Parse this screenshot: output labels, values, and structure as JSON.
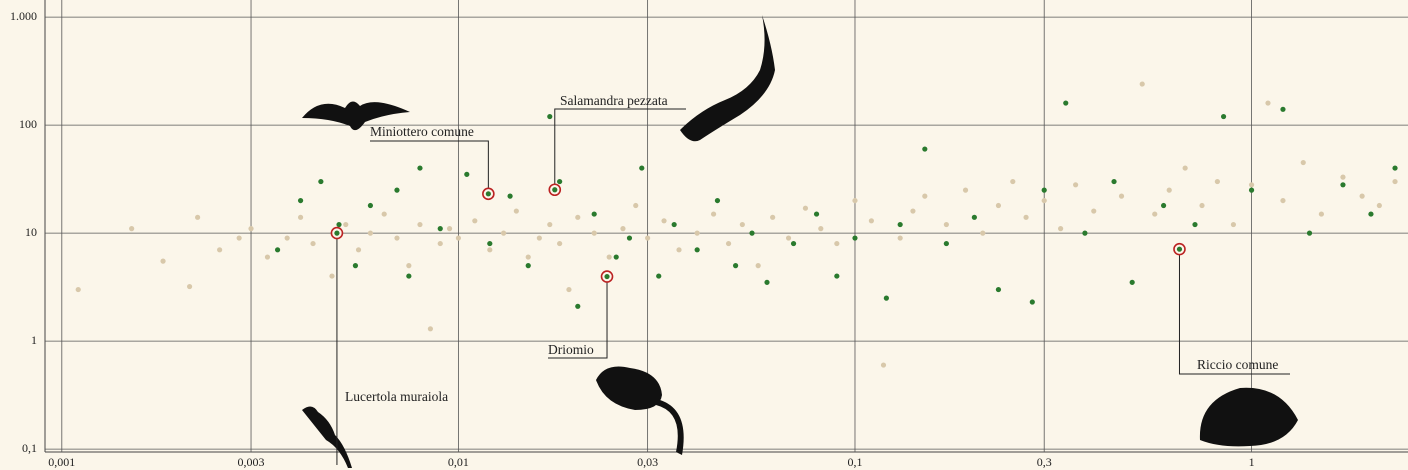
{
  "chart_data": {
    "type": "scatter",
    "xlog": true,
    "ylog": true,
    "grid": true,
    "xlim": [
      0.000907,
      2.48
    ],
    "ylim": [
      0.094,
      1440
    ],
    "xticks": [
      {
        "value": 0.001,
        "label": "0,001"
      },
      {
        "value": 0.003,
        "label": "0,003"
      },
      {
        "value": 0.01,
        "label": "0,01"
      },
      {
        "value": 0.03,
        "label": "0,03"
      },
      {
        "value": 0.1,
        "label": "0,1"
      },
      {
        "value": 0.3,
        "label": "0,3"
      },
      1
    ],
    "yticks": [
      {
        "value": 0.1,
        "label": "0,1"
      },
      1,
      10,
      100,
      {
        "value": 1000,
        "label": "1.000"
      }
    ],
    "series": [
      {
        "color": "#d8c8aa",
        "x": [
          0.0011,
          0.0015,
          0.0018,
          0.0021,
          0.0022,
          0.0025,
          0.0028,
          0.003,
          0.0033,
          0.0037,
          0.004,
          0.0043,
          0.0048,
          0.0052,
          0.0056,
          0.006,
          0.0065,
          0.007,
          0.0075,
          0.008,
          0.0085,
          0.009,
          0.0095,
          0.01,
          0.011,
          0.012,
          0.013,
          0.014,
          0.015,
          0.016,
          0.017,
          0.018,
          0.019,
          0.02,
          0.022,
          0.024,
          0.026,
          0.028,
          0.03,
          0.033,
          0.036,
          0.04,
          0.044,
          0.048,
          0.052,
          0.057,
          0.062,
          0.068,
          0.075,
          0.082,
          0.09,
          0.1,
          0.11,
          0.118,
          0.13,
          0.14,
          0.15,
          0.17,
          0.19,
          0.21,
          0.23,
          0.25,
          0.27,
          0.3,
          0.33,
          0.36,
          0.4,
          0.47,
          0.53,
          0.57,
          0.62,
          0.68,
          0.75,
          0.82,
          0.9,
          1,
          1.1,
          1.2,
          1.35,
          1.5,
          1.7,
          1.9,
          2.1,
          2.3
        ],
        "values": [
          3,
          11,
          5.5,
          3.2,
          14,
          7,
          9,
          11,
          6,
          9,
          14,
          8,
          4,
          12,
          7,
          10,
          15,
          9,
          5,
          12,
          1.3,
          8,
          11,
          9,
          13,
          7,
          10,
          16,
          6,
          9,
          12,
          8,
          3,
          14,
          10,
          6,
          11,
          18,
          9,
          13,
          7,
          10,
          15,
          8,
          12,
          5,
          14,
          9,
          17,
          11,
          8,
          20,
          13,
          0.6,
          9,
          16,
          22,
          12,
          25,
          10,
          18,
          30,
          14,
          20,
          11,
          28,
          16,
          22,
          240,
          15,
          25,
          40,
          18,
          30,
          12,
          28,
          160,
          20,
          45,
          15,
          33,
          22,
          18,
          30
        ]
      },
      {
        "color": "#2a7a2e",
        "x": [
          0.0035,
          0.004,
          0.0045,
          0.005,
          0.0055,
          0.006,
          0.007,
          0.0075,
          0.008,
          0.009,
          0.0105,
          0.012,
          0.0135,
          0.015,
          0.017,
          0.018,
          0.02,
          0.022,
          0.025,
          0.027,
          0.029,
          0.032,
          0.035,
          0.04,
          0.045,
          0.05,
          0.055,
          0.06,
          0.07,
          0.08,
          0.09,
          0.1,
          0.12,
          0.13,
          0.15,
          0.17,
          0.2,
          0.23,
          0.28,
          0.3,
          0.34,
          0.38,
          0.45,
          0.5,
          0.6,
          0.72,
          0.85,
          1,
          1.2,
          1.4,
          1.7,
          2,
          2.3
        ],
        "values": [
          7,
          20,
          30,
          12,
          5,
          18,
          25,
          4,
          40,
          11,
          35,
          8,
          22,
          5,
          120,
          30,
          2.1,
          15,
          6,
          9,
          40,
          4,
          12,
          7,
          20,
          5,
          10,
          3.5,
          8,
          15,
          4,
          9,
          2.5,
          12,
          60,
          8,
          14,
          3,
          2.3,
          25,
          160,
          10,
          30,
          3.5,
          18,
          12,
          120,
          25,
          140,
          10,
          28,
          15,
          40
        ]
      }
    ],
    "highlights": [
      {
        "label": "Lucertola muraiola",
        "x": 0.00494,
        "y": 10
      },
      {
        "label": "Miniottero comune",
        "x": 0.0119,
        "y": 23.1
      },
      {
        "label": "Salamandra pezzata",
        "x": 0.0175,
        "y": 25.2
      },
      {
        "label": "Driomio",
        "x": 0.0237,
        "y": 3.96
      },
      {
        "label": "Riccio comune",
        "x": 0.658,
        "y": 7.1
      }
    ]
  }
}
